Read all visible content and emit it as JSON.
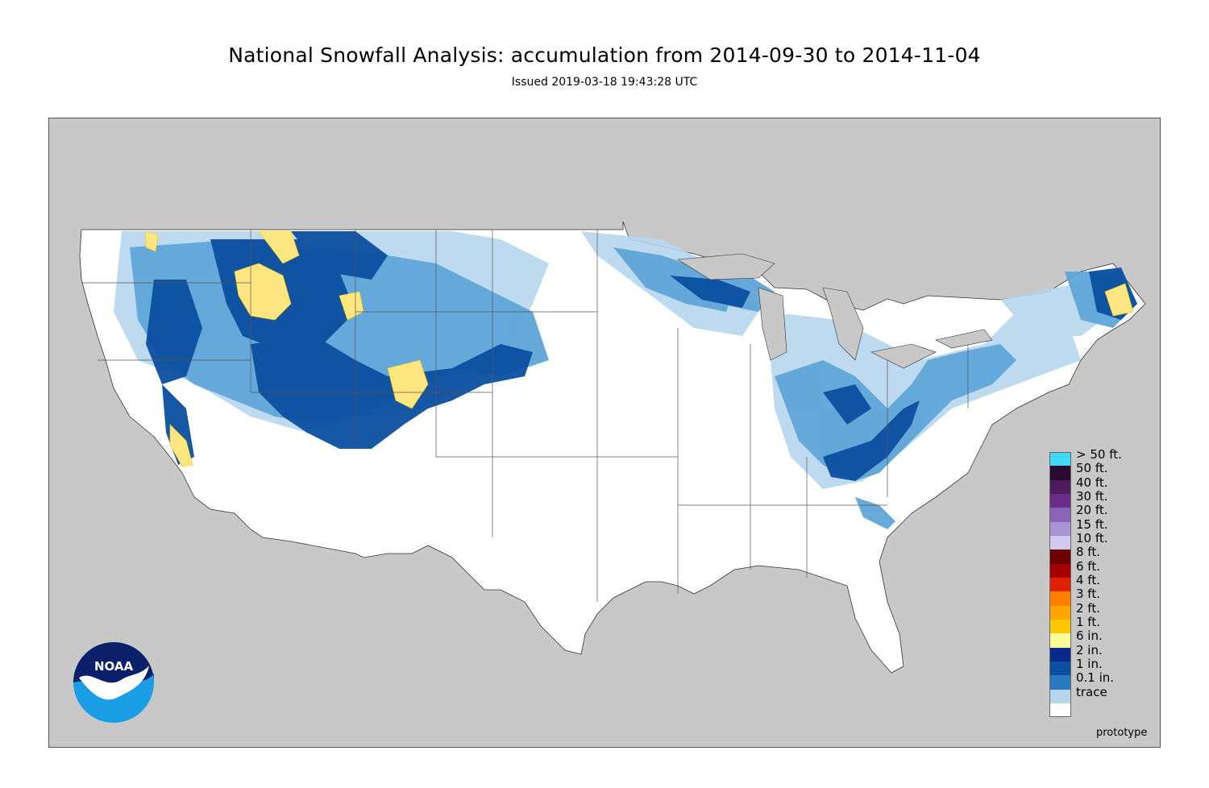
{
  "title": "National Snowfall Analysis: accumulation from 2014-09-30 to 2014-11-04",
  "subtitle": "Issued 2019-03-18 19:43:28 UTC",
  "footer_note": "prototype",
  "logo": {
    "text": "NOAA",
    "icon": "noaa-logo"
  },
  "colors": {
    "land_background": "#c8c8c8",
    "land_fill": "#ffffff",
    "border_line": "#555555"
  },
  "legend": [
    {
      "label": "> 50 ft.",
      "color": "#3fd9f4"
    },
    {
      "label": "50 ft.",
      "color": "#2c0b33"
    },
    {
      "label": "40 ft.",
      "color": "#4d1a5e"
    },
    {
      "label": "30 ft.",
      "color": "#6a2c86"
    },
    {
      "label": "20 ft.",
      "color": "#8a62b8"
    },
    {
      "label": "15 ft.",
      "color": "#a894d6"
    },
    {
      "label": "10 ft.",
      "color": "#d2c9f0"
    },
    {
      "label": "8 ft.",
      "color": "#6a0000"
    },
    {
      "label": "6 ft.",
      "color": "#a60000"
    },
    {
      "label": "4 ft.",
      "color": "#e02000"
    },
    {
      "label": "3 ft.",
      "color": "#ff7f00"
    },
    {
      "label": "2 ft.",
      "color": "#ffa500"
    },
    {
      "label": "1 ft.",
      "color": "#ffc800"
    },
    {
      "label": "6 in.",
      "color": "#ffff99"
    },
    {
      "label": "2 in.",
      "color": "#08288c"
    },
    {
      "label": "1 in.",
      "color": "#0b4fa0"
    },
    {
      "label": "0.1 in.",
      "color": "#2879c0"
    },
    {
      "label": "trace",
      "color": "#b6d6ee"
    },
    {
      "label": "",
      "color": "#ffffff"
    }
  ]
}
